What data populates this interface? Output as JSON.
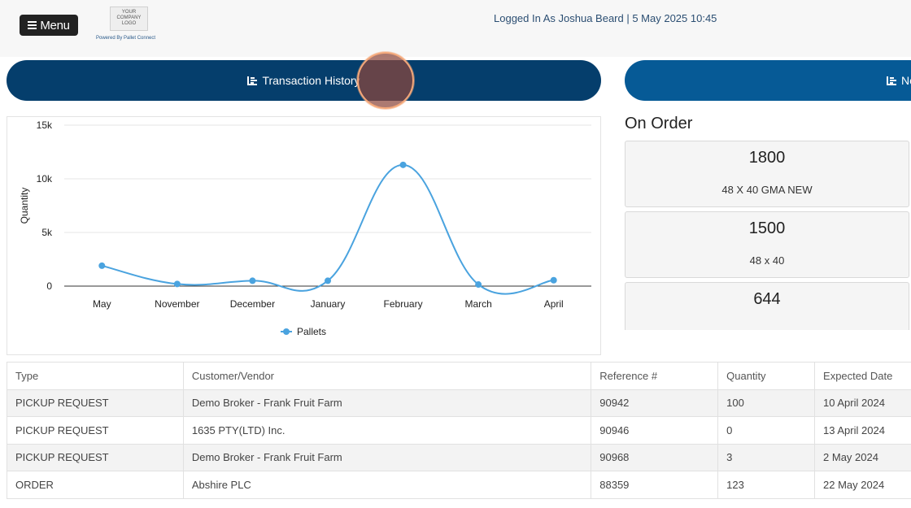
{
  "header": {
    "menu_label": "Menu",
    "logo_text": "YOUR COMPANY LOGO",
    "powered_by": "Powered By Pallet Connect",
    "login_info": "Logged In As Joshua Beard | 5 May 2025 10:45"
  },
  "tabs": [
    {
      "label": "Transaction History",
      "icon": "bar-chart-icon"
    },
    {
      "label": "Ne",
      "icon": "bar-chart-icon"
    }
  ],
  "chart_data": {
    "type": "line",
    "categories": [
      "May",
      "November",
      "December",
      "January",
      "February",
      "March",
      "April"
    ],
    "series": [
      {
        "name": "Pallets",
        "values": [
          1900,
          200,
          500,
          500,
          11300,
          150,
          550
        ],
        "color": "#4aa3df"
      }
    ],
    "ylabel": "Quantity",
    "ylim": [
      0,
      15000
    ],
    "yticks": [
      "0",
      "5k",
      "10k",
      "15k"
    ],
    "legend": "bottom",
    "grid": true
  },
  "on_order": {
    "title": "On Order",
    "items": [
      {
        "quantity": "1800",
        "description": "48 X 40 GMA NEW"
      },
      {
        "quantity": "1500",
        "description": "48 x 40"
      },
      {
        "quantity": "644",
        "description": ""
      }
    ]
  },
  "table": {
    "columns": [
      "Type",
      "Customer/Vendor",
      "Reference #",
      "Quantity",
      "Expected Date"
    ],
    "rows": [
      [
        "PICKUP REQUEST",
        "Demo Broker - Frank Fruit Farm",
        "90942",
        "100",
        "10 April 2024"
      ],
      [
        "PICKUP REQUEST",
        "1635 PTY(LTD) Inc.",
        "90946",
        "0",
        "13 April 2024"
      ],
      [
        "PICKUP REQUEST",
        "Demo Broker - Frank Fruit Farm",
        "90968",
        "3",
        "2 May 2024"
      ],
      [
        "ORDER",
        "Abshire PLC",
        "88359",
        "123",
        "22 May 2024"
      ]
    ]
  }
}
